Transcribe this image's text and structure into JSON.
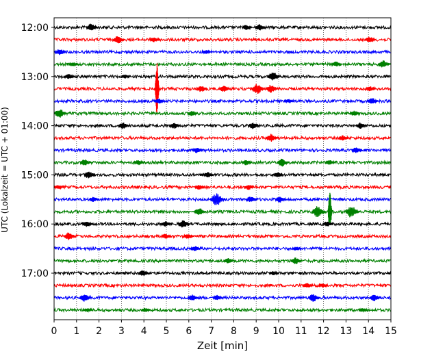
{
  "chart_data": {
    "type": "line",
    "xlabel": "Zeit  [min]",
    "ylabel": "UTC (Lokalzeit = UTC + 01:00)",
    "xlim": [
      0,
      15
    ],
    "xticks": [
      0,
      1,
      2,
      3,
      4,
      5,
      6,
      7,
      8,
      9,
      10,
      11,
      12,
      13,
      14,
      15
    ],
    "xtick_labels": [
      "0",
      "1",
      "2",
      "3",
      "4",
      "5",
      "6",
      "7",
      "8",
      "9",
      "10",
      "11",
      "12",
      "13",
      "14",
      "15"
    ],
    "grid": "vertical-dotted",
    "ytick_labels": [
      "12:00",
      "13:00",
      "14:00",
      "15:00",
      "16:00",
      "17:00"
    ],
    "colors": [
      "#000000",
      "#ff0000",
      "#0000ff",
      "#008000"
    ],
    "traces": [
      {
        "start": "12:00",
        "color": "#000000",
        "events": [
          {
            "x": 1.7,
            "amp": 6
          },
          {
            "x": 8.6,
            "amp": 4
          },
          {
            "x": 9.2,
            "amp": 5
          }
        ]
      },
      {
        "start": "12:15",
        "color": "#ff0000",
        "events": [
          {
            "x": 2.9,
            "amp": 6
          },
          {
            "x": 4.5,
            "amp": 4
          },
          {
            "x": 14.1,
            "amp": 5
          }
        ]
      },
      {
        "start": "12:30",
        "color": "#0000ff",
        "events": [
          {
            "x": 0.3,
            "amp": 5
          },
          {
            "x": 6.8,
            "amp": 3
          }
        ]
      },
      {
        "start": "12:45",
        "color": "#008000",
        "events": [
          {
            "x": 0.9,
            "amp": 3
          },
          {
            "x": 12.6,
            "amp": 4
          },
          {
            "x": 14.7,
            "amp": 6
          }
        ]
      },
      {
        "start": "13:00",
        "color": "#000000",
        "events": [
          {
            "x": 0.7,
            "amp": 4
          },
          {
            "x": 3.2,
            "amp": 3
          },
          {
            "x": 9.8,
            "amp": 7
          }
        ]
      },
      {
        "start": "13:15",
        "color": "#ff0000",
        "events": [
          {
            "x": 4.6,
            "amp": 38
          },
          {
            "x": 6.6,
            "amp": 5
          },
          {
            "x": 7.6,
            "amp": 5
          },
          {
            "x": 9.1,
            "amp": 8
          },
          {
            "x": 9.7,
            "amp": 6
          },
          {
            "x": 14.1,
            "amp": 4
          }
        ]
      },
      {
        "start": "13:30",
        "color": "#0000ff",
        "events": [
          {
            "x": 4.7,
            "amp": 4
          },
          {
            "x": 10.5,
            "amp": 3
          },
          {
            "x": 14.2,
            "amp": 5
          }
        ]
      },
      {
        "start": "13:45",
        "color": "#008000",
        "events": [
          {
            "x": 0.3,
            "amp": 7
          },
          {
            "x": 6.2,
            "amp": 4
          },
          {
            "x": 13.4,
            "amp": 4
          }
        ]
      },
      {
        "start": "14:00",
        "color": "#000000",
        "events": [
          {
            "x": 3.1,
            "amp": 5
          },
          {
            "x": 5.4,
            "amp": 5
          },
          {
            "x": 8.9,
            "amp": 5
          },
          {
            "x": 13.7,
            "amp": 5
          }
        ]
      },
      {
        "start": "14:15",
        "color": "#ff0000",
        "events": [
          {
            "x": 9.7,
            "amp": 6
          },
          {
            "x": 12.9,
            "amp": 4
          }
        ]
      },
      {
        "start": "14:30",
        "color": "#0000ff",
        "events": [
          {
            "x": 6.4,
            "amp": 4
          },
          {
            "x": 13.5,
            "amp": 5
          }
        ]
      },
      {
        "start": "14:45",
        "color": "#008000",
        "events": [
          {
            "x": 1.4,
            "amp": 5
          },
          {
            "x": 3.8,
            "amp": 4
          },
          {
            "x": 8.6,
            "amp": 4
          },
          {
            "x": 10.2,
            "amp": 6
          },
          {
            "x": 12.3,
            "amp": 4
          }
        ]
      },
      {
        "start": "15:00",
        "color": "#000000",
        "events": [
          {
            "x": 1.6,
            "amp": 6
          },
          {
            "x": 6.9,
            "amp": 4
          },
          {
            "x": 10.0,
            "amp": 4
          }
        ]
      },
      {
        "start": "15:15",
        "color": "#ff0000",
        "events": [
          {
            "x": 0.2,
            "amp": 3
          },
          {
            "x": 6.5,
            "amp": 4
          },
          {
            "x": 8.7,
            "amp": 4
          }
        ]
      },
      {
        "start": "15:30",
        "color": "#0000ff",
        "events": [
          {
            "x": 1.8,
            "amp": 4
          },
          {
            "x": 7.3,
            "amp": 10
          },
          {
            "x": 8.8,
            "amp": 5
          },
          {
            "x": 10.1,
            "amp": 5
          }
        ]
      },
      {
        "start": "15:45",
        "color": "#008000",
        "events": [
          {
            "x": 6.5,
            "amp": 6
          },
          {
            "x": 11.8,
            "amp": 9
          },
          {
            "x": 12.3,
            "amp": 28
          },
          {
            "x": 13.3,
            "amp": 9
          }
        ]
      },
      {
        "start": "16:00",
        "color": "#000000",
        "events": [
          {
            "x": 1.5,
            "amp": 5
          },
          {
            "x": 5.0,
            "amp": 4
          },
          {
            "x": 5.8,
            "amp": 6
          },
          {
            "x": 12.2,
            "amp": 4
          }
        ]
      },
      {
        "start": "16:15",
        "color": "#ff0000",
        "events": [
          {
            "x": 0.7,
            "amp": 6
          },
          {
            "x": 5.0,
            "amp": 4
          },
          {
            "x": 6.0,
            "amp": 4
          }
        ]
      },
      {
        "start": "16:30",
        "color": "#0000ff",
        "events": [
          {
            "x": 6.3,
            "amp": 4
          },
          {
            "x": 10.8,
            "amp": 3
          }
        ]
      },
      {
        "start": "16:45",
        "color": "#008000",
        "events": [
          {
            "x": 7.8,
            "amp": 4
          },
          {
            "x": 10.8,
            "amp": 5
          }
        ]
      },
      {
        "start": "17:00",
        "color": "#000000",
        "events": [
          {
            "x": 4.0,
            "amp": 5
          },
          {
            "x": 9.8,
            "amp": 3
          }
        ]
      },
      {
        "start": "17:15",
        "color": "#ff0000",
        "events": [
          {
            "x": 11.3,
            "amp": 4
          },
          {
            "x": 12.0,
            "amp": 3
          }
        ]
      },
      {
        "start": "17:30",
        "color": "#0000ff",
        "events": [
          {
            "x": 1.4,
            "amp": 6
          },
          {
            "x": 6.2,
            "amp": 5
          },
          {
            "x": 7.3,
            "amp": 4
          },
          {
            "x": 11.6,
            "amp": 6
          },
          {
            "x": 14.3,
            "amp": 5
          }
        ]
      },
      {
        "start": "17:45",
        "color": "#008000",
        "events": [
          {
            "x": 1.5,
            "amp": 3
          },
          {
            "x": 4.1,
            "amp": 3
          },
          {
            "x": 13.8,
            "amp": 3
          }
        ]
      }
    ]
  }
}
